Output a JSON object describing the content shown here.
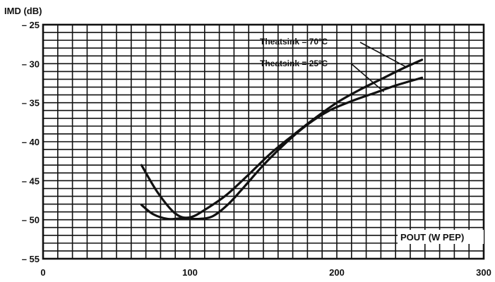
{
  "chart_data": {
    "type": "line",
    "ylabel": "IMD (dB)",
    "xlabel": "POUT (W PEP)",
    "xlim": [
      0,
      300
    ],
    "ylim": [
      -55,
      -25
    ],
    "x_ticks": [
      "0",
      "100",
      "200",
      "300"
    ],
    "y_ticks": [
      "– 25",
      "– 30",
      "– 35",
      "– 40",
      "– 45",
      "– 50",
      "– 55"
    ],
    "grid": true,
    "series": [
      {
        "name": "Theatsink = 70ºC",
        "x": [
          67,
          78,
          90,
          100,
          112,
          125,
          140,
          155,
          170,
          185,
          200,
          215,
          230,
          245,
          258
        ],
        "y": [
          -43,
          -46.5,
          -49.2,
          -49.7,
          -48.5,
          -46.8,
          -44.2,
          -41.5,
          -39.2,
          -37,
          -35,
          -33.4,
          -32,
          -30.6,
          -29.5
        ]
      },
      {
        "name": "Theatsink = 25ºC",
        "x": [
          67,
          75,
          85,
          95,
          105,
          115,
          125,
          135,
          150,
          165,
          180,
          195,
          210,
          225,
          240,
          258
        ],
        "y": [
          -48.1,
          -49.3,
          -49.9,
          -49.8,
          -49.9,
          -49.6,
          -48.2,
          -46.2,
          -43,
          -40.2,
          -37.8,
          -36,
          -34.8,
          -33.8,
          -32.8,
          -31.8
        ]
      }
    ],
    "annotations": [
      "Theatsink = 70ºC",
      "Theatsink = 25ºC"
    ]
  }
}
